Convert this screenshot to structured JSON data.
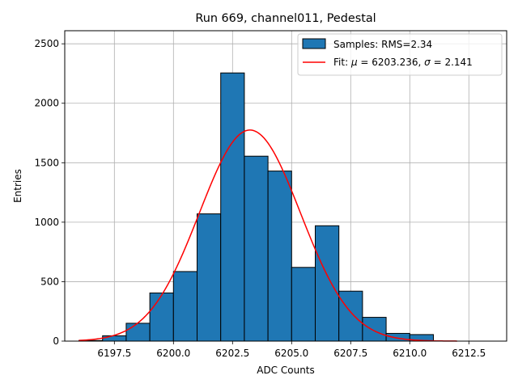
{
  "chart_data": {
    "type": "bar",
    "title": "Run 669, channel011, Pedestal",
    "xlabel": "ADC Counts",
    "ylabel": "Entries",
    "xlim": [
      6195.4,
      6214.1
    ],
    "ylim": [
      0,
      2610
    ],
    "xticks": [
      6197.5,
      6200.0,
      6202.5,
      6205.0,
      6207.5,
      6210.0,
      6212.5
    ],
    "xtick_labels": [
      "6197.5",
      "6200.0",
      "6202.5",
      "6205.0",
      "6207.5",
      "6210.0",
      "6212.5"
    ],
    "yticks": [
      0,
      500,
      1000,
      1500,
      2000,
      2500
    ],
    "ytick_labels": [
      "0",
      "500",
      "1000",
      "1500",
      "2000",
      "2500"
    ],
    "grid": true,
    "legend_position": "top-right",
    "histogram": {
      "name": "Samples: RMS=2.34",
      "color": "#1f77b4",
      "edge_color": "#000000",
      "bin_edges": [
        6196,
        6197,
        6198,
        6199,
        6200,
        6201,
        6202,
        6203,
        6204,
        6205,
        6206,
        6207,
        6208,
        6209,
        6210,
        6211,
        6212,
        6213
      ],
      "counts": [
        5,
        45,
        150,
        405,
        585,
        1070,
        2255,
        1555,
        1430,
        620,
        970,
        420,
        200,
        65,
        55,
        0,
        0
      ]
    },
    "fit": {
      "name": "Fit: μ = 6203.236, σ = 2.141",
      "label_prefix": "Fit: ",
      "mu_symbol": "μ",
      "mu_text": " = 6203.236, ",
      "sigma_symbol": "σ",
      "sigma_text": " = 2.141",
      "color": "#ff0000",
      "mu": 6203.236,
      "sigma": 2.141,
      "amplitude": 1775,
      "x_range": [
        6196,
        6212
      ]
    }
  }
}
